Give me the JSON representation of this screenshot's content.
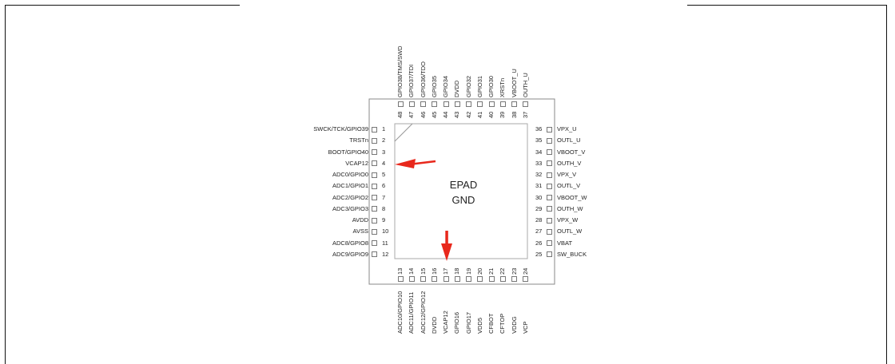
{
  "epad": {
    "line1": "EPAD",
    "line2": "GND"
  },
  "pins": {
    "left": [
      {
        "num": "1",
        "name": "SWCK/TCK/GPIO39"
      },
      {
        "num": "2",
        "name": "TRSTn"
      },
      {
        "num": "3",
        "name": "BOOT/GPIO40"
      },
      {
        "num": "4",
        "name": "VCAP12"
      },
      {
        "num": "5",
        "name": "ADC0/GPIO0"
      },
      {
        "num": "6",
        "name": "ADC1/GPIO1"
      },
      {
        "num": "7",
        "name": "ADC2/GPIO2"
      },
      {
        "num": "8",
        "name": "ADC3/GPIO3"
      },
      {
        "num": "9",
        "name": "AVDD"
      },
      {
        "num": "10",
        "name": "AVSS"
      },
      {
        "num": "11",
        "name": "ADC8/GPIO8"
      },
      {
        "num": "12",
        "name": "ADC9/GPIO9"
      }
    ],
    "bottom": [
      {
        "num": "13",
        "name": "ADC10/GPIO10"
      },
      {
        "num": "14",
        "name": "ADC11/GPIO11"
      },
      {
        "num": "15",
        "name": "ADC12/GPIO12"
      },
      {
        "num": "16",
        "name": "DVDD"
      },
      {
        "num": "17",
        "name": "VCAP12"
      },
      {
        "num": "18",
        "name": "GPIO16"
      },
      {
        "num": "19",
        "name": "GPIO17"
      },
      {
        "num": "20",
        "name": "VDD5"
      },
      {
        "num": "21",
        "name": "CFBOT"
      },
      {
        "num": "22",
        "name": "CFTOP"
      },
      {
        "num": "23",
        "name": "VDDG"
      },
      {
        "num": "24",
        "name": "VCP"
      }
    ],
    "right": [
      {
        "num": "25",
        "name": "SW_BUCK"
      },
      {
        "num": "26",
        "name": "VBAT"
      },
      {
        "num": "27",
        "name": "OUTL_W"
      },
      {
        "num": "28",
        "name": "VPX_W"
      },
      {
        "num": "29",
        "name": "OUTH_W"
      },
      {
        "num": "30",
        "name": "VBOOT_W"
      },
      {
        "num": "31",
        "name": "OUTL_V"
      },
      {
        "num": "32",
        "name": "VPX_V"
      },
      {
        "num": "33",
        "name": "OUTH_V"
      },
      {
        "num": "34",
        "name": "VBOOT_V"
      },
      {
        "num": "35",
        "name": "OUTL_U"
      },
      {
        "num": "36",
        "name": "VPX_U"
      }
    ],
    "top": [
      {
        "num": "37",
        "name": "OUTH_U"
      },
      {
        "num": "38",
        "name": "VBOOT_U"
      },
      {
        "num": "39",
        "name": "XRSTn"
      },
      {
        "num": "40",
        "name": "GPIO30"
      },
      {
        "num": "41",
        "name": "GPIO31"
      },
      {
        "num": "42",
        "name": "GPIO32"
      },
      {
        "num": "43",
        "name": "DVDD"
      },
      {
        "num": "44",
        "name": "GPIO34"
      },
      {
        "num": "45",
        "name": "GPIO35"
      },
      {
        "num": "46",
        "name": "GPIO36/TDO"
      },
      {
        "num": "47",
        "name": "GPIO37/TDI"
      },
      {
        "num": "48",
        "name": "GPIO38/TMS/SWD"
      }
    ]
  },
  "colors": {
    "arrow": "#e8281c",
    "outline": "#888888",
    "text": "#222222"
  }
}
